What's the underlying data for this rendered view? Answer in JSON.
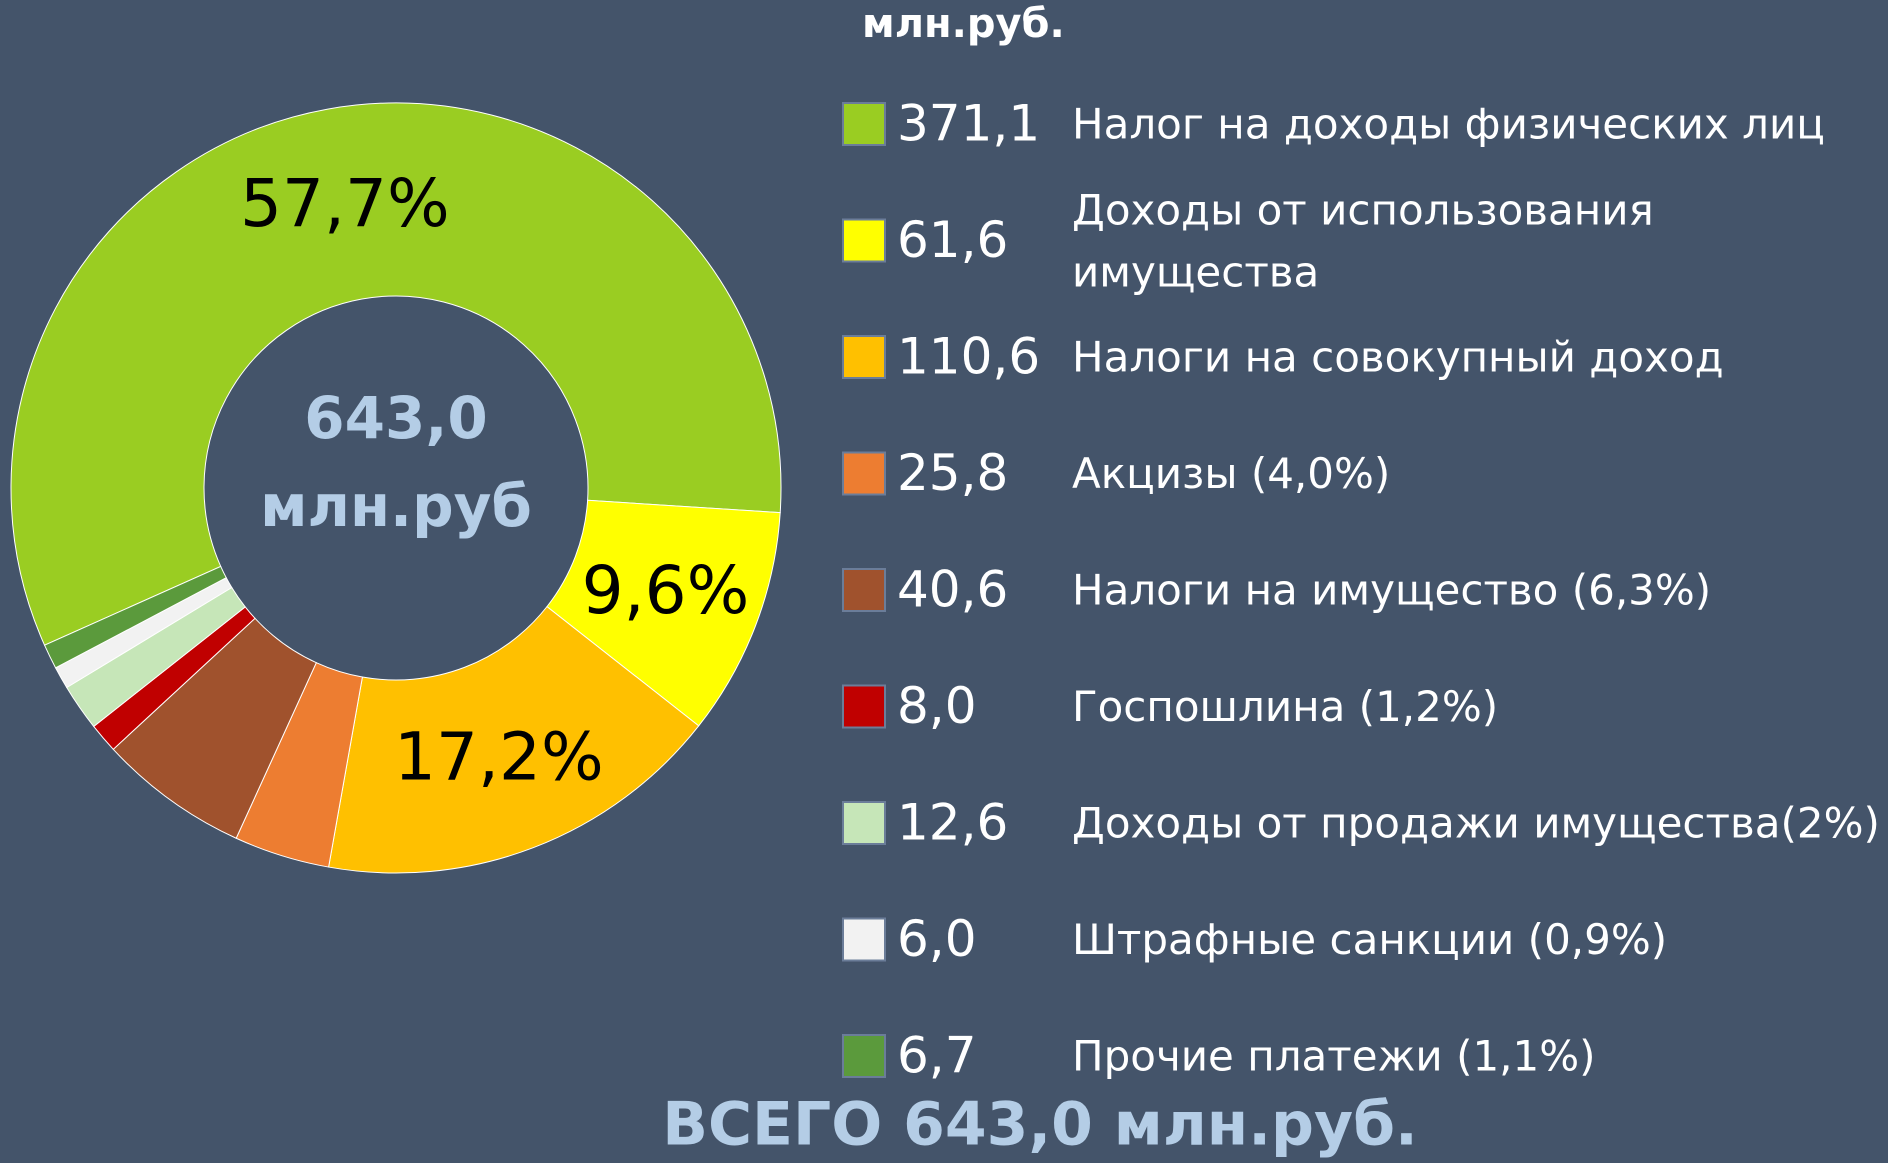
{
  "chart_data": {
    "type": "donut",
    "title": "млн.руб.",
    "center_text": [
      "643,0",
      "млн.руб"
    ],
    "footer": "ВСЕГО 643,0 млн.руб.",
    "categories": [
      "Налог на доходы физических лиц",
      "Доходы от использования\nимущества",
      "Налоги на совокупный доход",
      "Акцизы (4,0%)",
      "Налоги на имущество (6,3%)",
      "Госпошлина (1,2%)",
      "Доходы от продажи имущества(2%)",
      "Штрафные санкции (0,9%)",
      "Прочие платежи (1,1%)"
    ],
    "values": [
      371.1,
      61.6,
      110.6,
      25.8,
      40.6,
      8.0,
      12.6,
      6.0,
      6.7
    ],
    "value_labels": [
      "371,1",
      "61,6",
      "110,6",
      "25,8",
      "40,6",
      "8,0",
      "12,6",
      "6,0",
      "6,7"
    ],
    "percent_labels": [
      "57,7%",
      "9,6%",
      "17,2%",
      null,
      null,
      null,
      null,
      null,
      null
    ],
    "colors": [
      "#9acd22",
      "#ffff00",
      "#ffc000",
      "#ed7d31",
      "#a0522d",
      "#c00000",
      "#c6e6b8",
      "#f2f2f2",
      "#5b9a3c"
    ],
    "legend": "right"
  }
}
